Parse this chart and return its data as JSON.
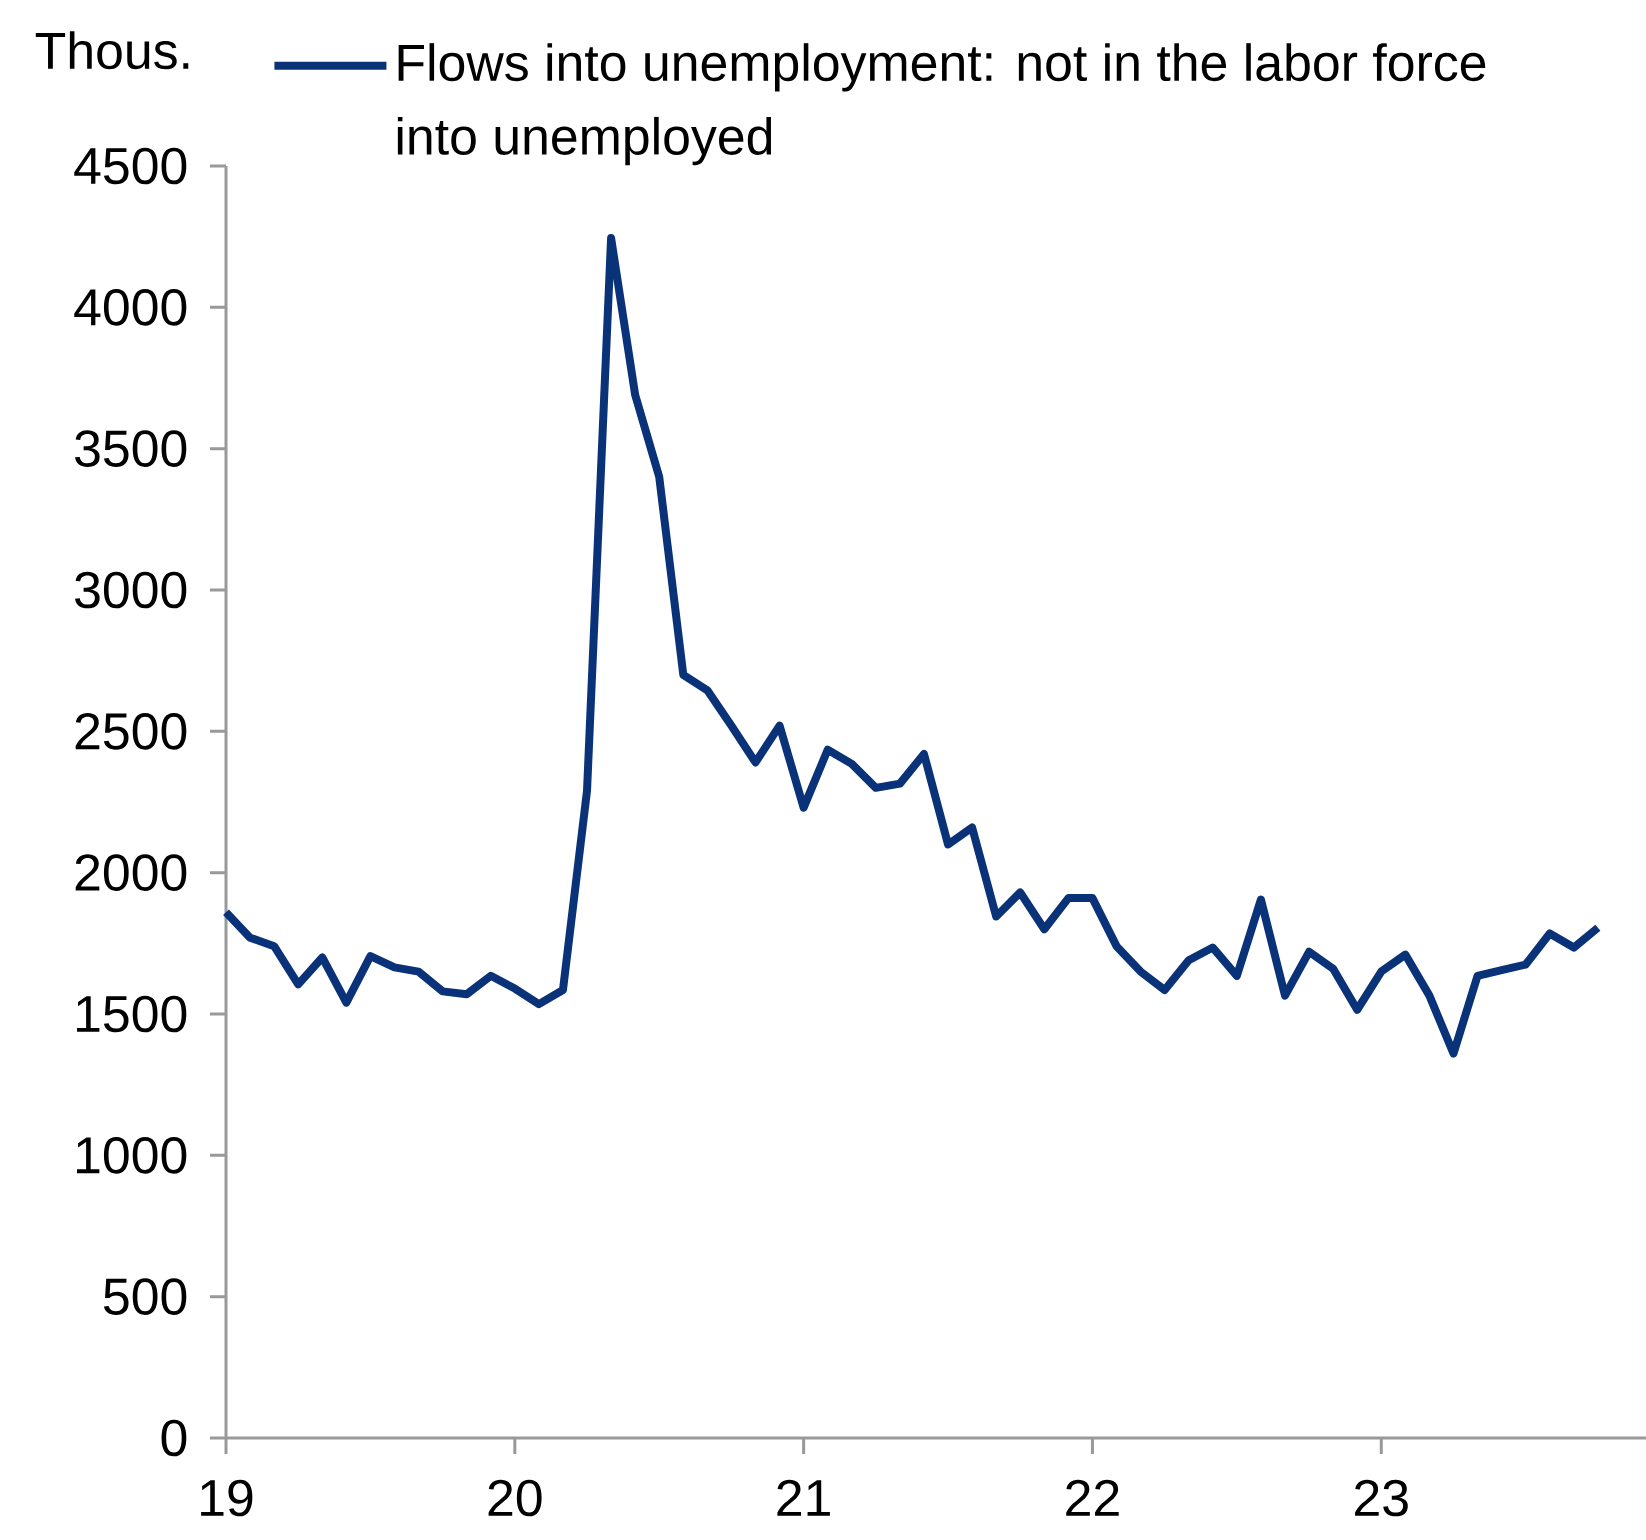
{
  "chart_data": {
    "type": "line",
    "ylabel": "Thous.",
    "legend": "top",
    "x": [
      "2019-01",
      "2019-02",
      "2019-03",
      "2019-04",
      "2019-05",
      "2019-06",
      "2019-07",
      "2019-08",
      "2019-09",
      "2019-10",
      "2019-11",
      "2019-12",
      "2020-01",
      "2020-02",
      "2020-03",
      "2020-04",
      "2020-05",
      "2020-06",
      "2020-07",
      "2020-08",
      "2020-09",
      "2020-10",
      "2020-11",
      "2020-12",
      "2021-01",
      "2021-02",
      "2021-03",
      "2021-04",
      "2021-05",
      "2021-06",
      "2021-07",
      "2021-08",
      "2021-09",
      "2021-10",
      "2021-11",
      "2021-12",
      "2022-01",
      "2022-02",
      "2022-03",
      "2022-04",
      "2022-05",
      "2022-06",
      "2022-07",
      "2022-08",
      "2022-09",
      "2022-10",
      "2022-11",
      "2022-12",
      "2023-01",
      "2023-02",
      "2023-03",
      "2023-04",
      "2023-05",
      "2023-06",
      "2023-07",
      "2023-08",
      "2023-09",
      "2023-10"
    ],
    "series": [
      {
        "name": "Flows into unemployment: not in the labor force into unemployed",
        "color": "#0a3278",
        "line_style": "solid",
        "marker": "none",
        "values": [
          1860,
          1770,
          1740,
          1605,
          1700,
          1540,
          1705,
          1665,
          1650,
          1580,
          1570,
          1635,
          1590,
          1535,
          1585,
          2290,
          4245,
          3690,
          3400,
          2700,
          2645,
          2520,
          2390,
          2520,
          2230,
          2435,
          2385,
          2300,
          2315,
          2420,
          2100,
          2160,
          1845,
          1930,
          1800,
          1910,
          1910,
          1740,
          1650,
          1585,
          1690,
          1735,
          1635,
          1905,
          1565,
          1720,
          1660,
          1515,
          1650,
          1710,
          1565,
          1360,
          1635,
          1655,
          1675,
          1785,
          1735,
          1805
        ]
      }
    ],
    "xlim": [
      "2019-01",
      "2023-12"
    ],
    "xticks": [
      {
        "value": "2019-01",
        "label": "19"
      },
      {
        "value": "2020-01",
        "label": "20"
      },
      {
        "value": "2021-01",
        "label": "21"
      },
      {
        "value": "2022-01",
        "label": "22"
      },
      {
        "value": "2023-01",
        "label": "23"
      }
    ],
    "ylim": [
      0,
      4500
    ],
    "yticks": [
      0,
      500,
      1000,
      1500,
      2000,
      2500,
      3000,
      3500,
      4000,
      4500
    ]
  }
}
